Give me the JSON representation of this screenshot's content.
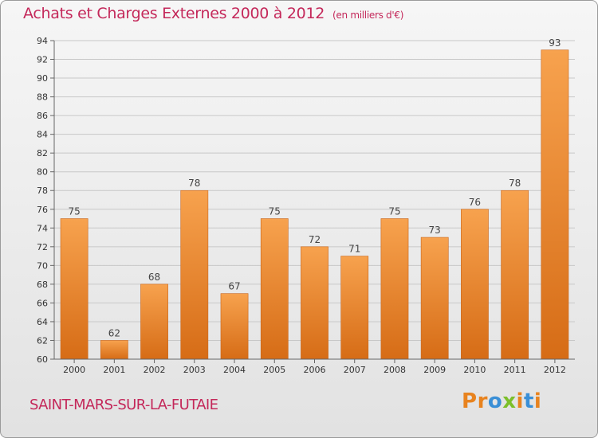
{
  "header": {
    "title": "Achats et Charges Externes 2000 à 2012",
    "unit": "(en milliers d'€)"
  },
  "footer": {
    "town": "SAINT-MARS-SUR-LA-FUTAIE",
    "logo_letters": [
      "P",
      "r",
      "o",
      "x",
      "i",
      "t",
      "i"
    ]
  },
  "colors": {
    "title": "#c4285a",
    "bar_light": "#f7a24e",
    "bar_dark": "#d66c16",
    "logo": [
      "#e8831f",
      "#e8831f",
      "#3a8fd6",
      "#7cbf2a",
      "#e8831f",
      "#3a8fd6",
      "#e8831f"
    ]
  },
  "chart_data": {
    "type": "bar",
    "categories": [
      "2000",
      "2001",
      "2002",
      "2003",
      "2004",
      "2005",
      "2006",
      "2007",
      "2008",
      "2009",
      "2010",
      "2011",
      "2012"
    ],
    "values": [
      75,
      62,
      68,
      78,
      67,
      75,
      72,
      71,
      75,
      73,
      76,
      78,
      93
    ],
    "title": "Achats et Charges Externes 2000 à 2012",
    "unit": "(en milliers d'€)",
    "ylim": [
      60,
      94
    ],
    "yticks": [
      60,
      62,
      64,
      66,
      68,
      70,
      72,
      74,
      76,
      78,
      80,
      82,
      84,
      86,
      88,
      90,
      92,
      94
    ],
    "grid": true,
    "legend": "none"
  }
}
